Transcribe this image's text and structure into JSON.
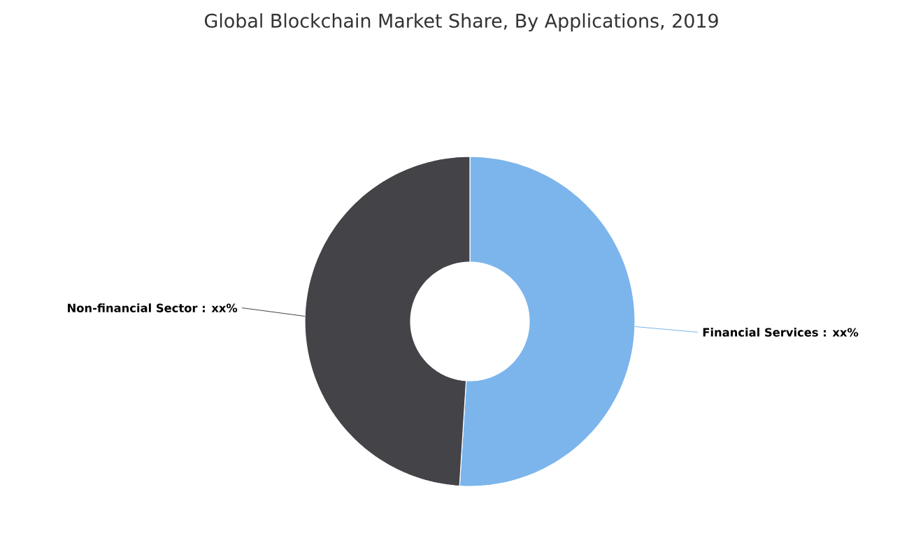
{
  "chart_data": {
    "type": "donut",
    "title": "Global Blockchain Market Share, By Applications, 2019",
    "categories": [
      "Financial Services : xx%",
      "Non-financial Sector : xx%"
    ],
    "values": [
      51,
      49
    ],
    "colors": [
      "#7cb5ec",
      "#434348"
    ]
  }
}
